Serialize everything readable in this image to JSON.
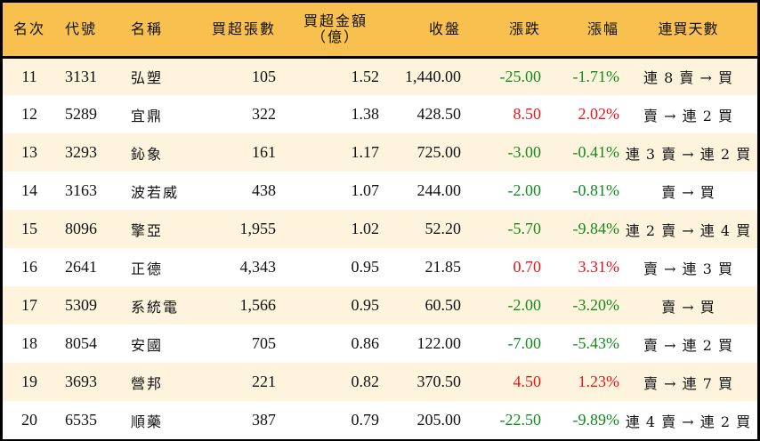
{
  "table": {
    "headers": {
      "rank": "名次",
      "code": "代號",
      "name": "名稱",
      "buy_volume": "買超張數",
      "buy_amount_line1": "買超金額",
      "buy_amount_line2": "（億）",
      "close": "收盤",
      "change": "漲跌",
      "change_pct": "漲幅",
      "streak": "連買天數"
    },
    "colors": {
      "header_bg": "#F8C04F",
      "row_alt_bg": "#FEF4DE",
      "up": "#E8141B",
      "down": "#138A1E",
      "border": "#000000"
    },
    "rows": [
      {
        "rank": "11",
        "code": "3131",
        "name": "弘塑",
        "buy_volume": "105",
        "buy_amount": "1.52",
        "close": "1,440.00",
        "change": "-25.00",
        "change_pct": "-1.71%",
        "direction": "down",
        "streak": "連 8 賣 → 買"
      },
      {
        "rank": "12",
        "code": "5289",
        "name": "宜鼎",
        "buy_volume": "322",
        "buy_amount": "1.38",
        "close": "428.50",
        "change": "8.50",
        "change_pct": "2.02%",
        "direction": "up",
        "streak": "賣 → 連 2 買"
      },
      {
        "rank": "13",
        "code": "3293",
        "name": "鈊象",
        "buy_volume": "161",
        "buy_amount": "1.17",
        "close": "725.00",
        "change": "-3.00",
        "change_pct": "-0.41%",
        "direction": "down",
        "streak": "連 3 賣 → 連 2 買"
      },
      {
        "rank": "14",
        "code": "3163",
        "name": "波若威",
        "buy_volume": "438",
        "buy_amount": "1.07",
        "close": "244.00",
        "change": "-2.00",
        "change_pct": "-0.81%",
        "direction": "down",
        "streak": "賣 → 買"
      },
      {
        "rank": "15",
        "code": "8096",
        "name": "擎亞",
        "buy_volume": "1,955",
        "buy_amount": "1.02",
        "close": "52.20",
        "change": "-5.70",
        "change_pct": "-9.84%",
        "direction": "down",
        "streak": "連 2 賣 → 連 4 買"
      },
      {
        "rank": "16",
        "code": "2641",
        "name": "正德",
        "buy_volume": "4,343",
        "buy_amount": "0.95",
        "close": "21.85",
        "change": "0.70",
        "change_pct": "3.31%",
        "direction": "up",
        "streak": "賣 → 連 3 買"
      },
      {
        "rank": "17",
        "code": "5309",
        "name": "系統電",
        "buy_volume": "1,566",
        "buy_amount": "0.95",
        "close": "60.50",
        "change": "-2.00",
        "change_pct": "-3.20%",
        "direction": "down",
        "streak": "賣 → 買"
      },
      {
        "rank": "18",
        "code": "8054",
        "name": "安國",
        "buy_volume": "705",
        "buy_amount": "0.86",
        "close": "122.00",
        "change": "-7.00",
        "change_pct": "-5.43%",
        "direction": "down",
        "streak": "賣 → 連 2 買"
      },
      {
        "rank": "19",
        "code": "3693",
        "name": "營邦",
        "buy_volume": "221",
        "buy_amount": "0.82",
        "close": "370.50",
        "change": "4.50",
        "change_pct": "1.23%",
        "direction": "up",
        "streak": "賣 → 連 7 買"
      },
      {
        "rank": "20",
        "code": "6535",
        "name": "順藥",
        "buy_volume": "387",
        "buy_amount": "0.79",
        "close": "205.00",
        "change": "-22.50",
        "change_pct": "-9.89%",
        "direction": "down",
        "streak": "連 4 賣 → 連 2 買"
      }
    ]
  }
}
